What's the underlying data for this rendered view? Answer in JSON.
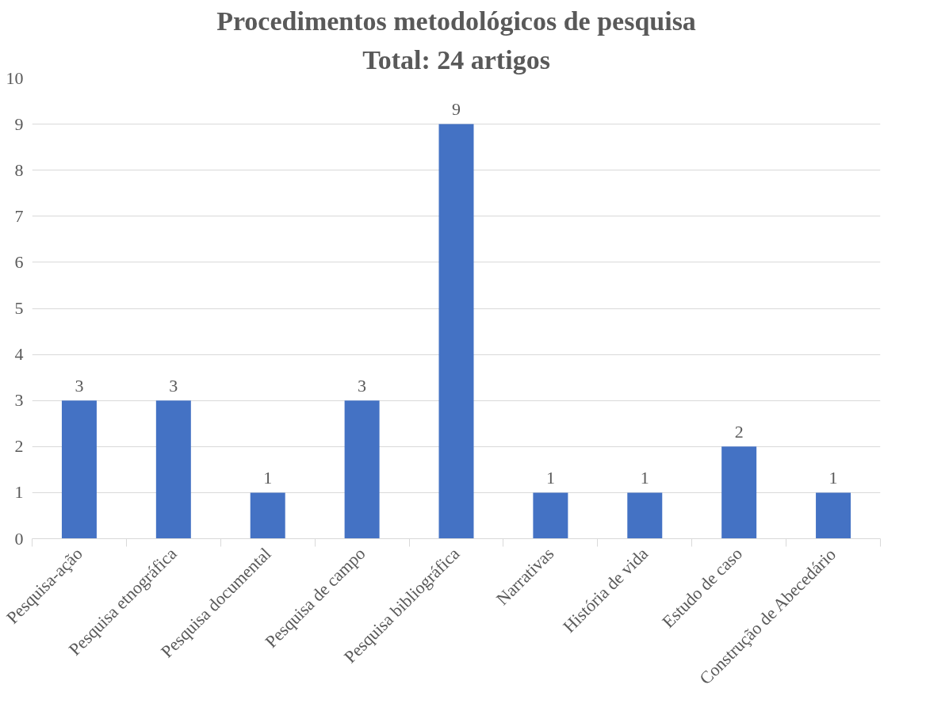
{
  "chart_data": {
    "type": "bar",
    "title": "Procedimentos metodológicos de pesquisa",
    "subtitle": "Total: 24 artigos",
    "categories": [
      "Pesquisa-ação",
      "Pesquisa etnográfica",
      "Pesquisa documental",
      "Pesquisa de campo",
      "Pesquisa bibliográfica",
      "Narrativas",
      "História de vida",
      "Estudo de caso",
      "Construção de Abecedário"
    ],
    "values": [
      3,
      3,
      1,
      3,
      9,
      1,
      1,
      2,
      1
    ],
    "color": "#4472c4",
    "ylim": [
      0,
      10
    ],
    "yticks": [
      0,
      1,
      2,
      3,
      4,
      5,
      6,
      7,
      8,
      9,
      10
    ],
    "grid": "y",
    "data_labels": true
  }
}
